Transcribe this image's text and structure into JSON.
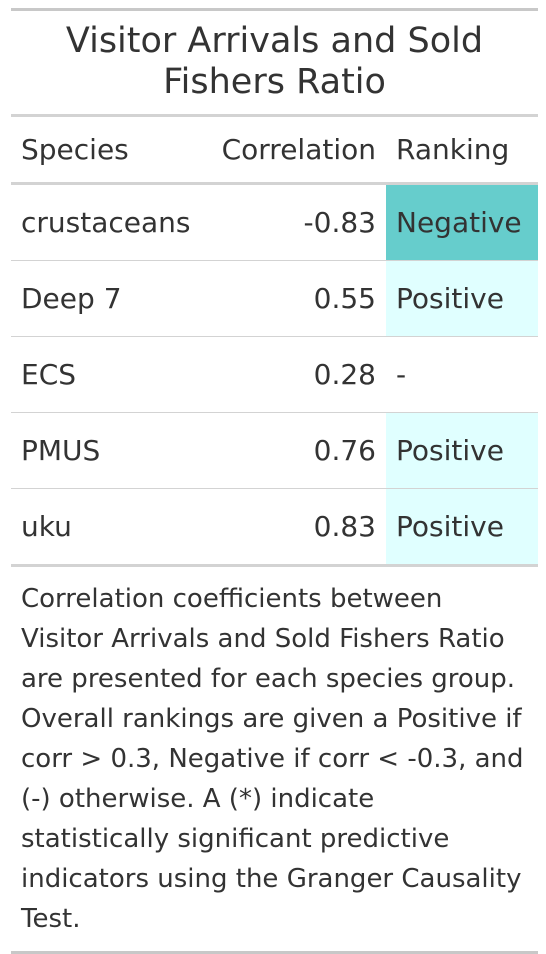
{
  "table": {
    "title": "Visitor Arrivals and Sold Fishers Ratio",
    "columns": [
      "Species",
      "Correlation",
      "Ranking"
    ],
    "rows": [
      {
        "species": "crustaceans",
        "correlation": "-0.83",
        "ranking": "Negative",
        "ranking_bg": "#66cdcc"
      },
      {
        "species": "Deep 7",
        "correlation": "0.55",
        "ranking": "Positive",
        "ranking_bg": "#e0ffff"
      },
      {
        "species": "ECS",
        "correlation": "0.28",
        "ranking": "-",
        "ranking_bg": "#ffffff"
      },
      {
        "species": "PMUS",
        "correlation": "0.76",
        "ranking": "Positive",
        "ranking_bg": "#e0ffff"
      },
      {
        "species": "uku",
        "correlation": "0.83",
        "ranking": "Positive",
        "ranking_bg": "#e0ffff"
      }
    ],
    "footnote": "Correlation coefficients between Visitor Arrivals and Sold Fishers Ratio are presented for each species group. Overall rankings are given a Positive if corr > 0.3, Negative if corr < -0.3, and (-) otherwise. A (*) indicate statistically significant predictive indicators using the Granger Causality Test."
  }
}
